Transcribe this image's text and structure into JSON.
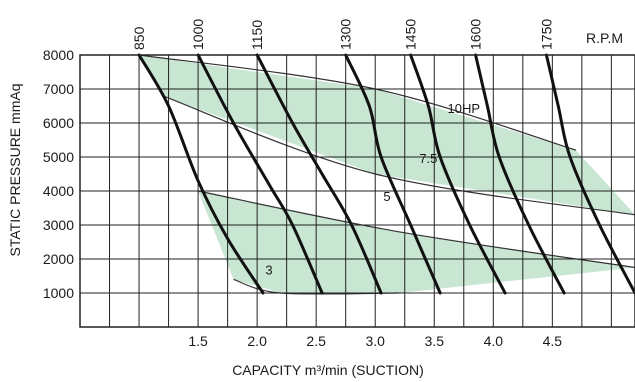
{
  "chart_data": {
    "type": "line",
    "xlabel": "CAPACITY m³/min (SUCTION)",
    "ylabel": "STATIC PRESSURE mmAq",
    "xlim": [
      0.5,
      5.2
    ],
    "ylim": [
      0,
      8000
    ],
    "x_ticks": [
      "1.5",
      "2.0",
      "2.5",
      "3.0",
      "3.5",
      "4.0",
      "4.5"
    ],
    "y_ticks": [
      "1000",
      "2000",
      "3000",
      "4000",
      "5000",
      "6000",
      "7000",
      "8000"
    ],
    "grid": true,
    "rpm_label": "R.P.M",
    "rpm_curves": [
      {
        "name": "850",
        "points": [
          [
            1.0,
            8000
          ],
          [
            1.25,
            6500
          ],
          [
            1.5,
            4300
          ],
          [
            1.75,
            2600
          ],
          [
            2.05,
            1000
          ]
        ]
      },
      {
        "name": "1000",
        "points": [
          [
            1.5,
            8000
          ],
          [
            1.8,
            6000
          ],
          [
            2.1,
            4200
          ],
          [
            2.3,
            3000
          ],
          [
            2.55,
            1000
          ]
        ]
      },
      {
        "name": "1150",
        "points": [
          [
            2.0,
            8000
          ],
          [
            2.3,
            6000
          ],
          [
            2.55,
            4500
          ],
          [
            2.8,
            3000
          ],
          [
            3.05,
            1000
          ]
        ]
      },
      {
        "name": "1300",
        "points": [
          [
            2.75,
            8000
          ],
          [
            2.95,
            6500
          ],
          [
            3.05,
            5000
          ],
          [
            3.3,
            3000
          ],
          [
            3.55,
            1000
          ]
        ]
      },
      {
        "name": "1450",
        "points": [
          [
            3.3,
            8000
          ],
          [
            3.45,
            6500
          ],
          [
            3.55,
            5000
          ],
          [
            3.8,
            3000
          ],
          [
            4.1,
            1000
          ]
        ]
      },
      {
        "name": "1600",
        "points": [
          [
            3.85,
            8000
          ],
          [
            3.95,
            6500
          ],
          [
            4.05,
            5000
          ],
          [
            4.3,
            3000
          ],
          [
            4.6,
            1000
          ]
        ]
      },
      {
        "name": "1750",
        "points": [
          [
            4.45,
            8000
          ],
          [
            4.55,
            6500
          ],
          [
            4.65,
            5000
          ],
          [
            4.9,
            3000
          ],
          [
            5.2,
            1000
          ]
        ]
      }
    ],
    "hp_bands": [
      {
        "name": "10HP",
        "upper": [
          [
            1.0,
            8000
          ],
          [
            3.0,
            7000
          ],
          [
            4.7,
            5200
          ]
        ],
        "lower": [
          [
            1.2,
            6800
          ],
          [
            3.0,
            4500
          ],
          [
            5.2,
            3300
          ]
        ]
      },
      {
        "name": "7.5",
        "upper": [],
        "lower": []
      },
      {
        "name": "5",
        "upper": [],
        "lower": []
      },
      {
        "name": "3",
        "upper": [
          [
            1.5,
            4000
          ],
          [
            3.2,
            2800
          ],
          [
            5.2,
            1750
          ]
        ],
        "lower": [
          [
            1.8,
            1400
          ],
          [
            2.2,
            1000
          ],
          [
            3.2,
            1000
          ]
        ]
      }
    ],
    "colors": {
      "band_fill": "#c8e6d2",
      "curve": "#111111",
      "grid": "#222222"
    }
  }
}
